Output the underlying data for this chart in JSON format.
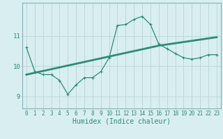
{
  "x": [
    0,
    1,
    2,
    3,
    4,
    5,
    6,
    7,
    8,
    9,
    10,
    11,
    12,
    13,
    14,
    15,
    16,
    17,
    18,
    19,
    20,
    21,
    22,
    23
  ],
  "y_data": [
    10.62,
    9.83,
    9.72,
    9.72,
    9.53,
    9.07,
    9.38,
    9.62,
    9.62,
    9.82,
    10.28,
    11.35,
    11.38,
    11.55,
    11.65,
    11.38,
    10.73,
    10.58,
    10.42,
    10.28,
    10.23,
    10.28,
    10.38,
    10.38
  ],
  "y_trend": [
    9.72,
    9.78,
    9.84,
    9.9,
    9.96,
    10.02,
    10.08,
    10.14,
    10.2,
    10.26,
    10.32,
    10.38,
    10.44,
    10.5,
    10.56,
    10.62,
    10.68,
    10.72,
    10.76,
    10.8,
    10.84,
    10.88,
    10.92,
    10.96
  ],
  "line_color": "#2e8b77",
  "trend_color": "#2e8b77",
  "bg_color": "#d8eef0",
  "grid_color": "#c0d8da",
  "xlabel": "Humidex (Indice chaleur)",
  "yticks": [
    9,
    10,
    11
  ],
  "xticks": [
    0,
    1,
    2,
    3,
    4,
    5,
    6,
    7,
    8,
    9,
    10,
    11,
    12,
    13,
    14,
    15,
    16,
    17,
    18,
    19,
    20,
    21,
    22,
    23
  ],
  "ylim": [
    8.6,
    12.1
  ],
  "xlim": [
    -0.5,
    23.5
  ],
  "tick_fontsize": 5.5,
  "xlabel_fontsize": 7.0
}
